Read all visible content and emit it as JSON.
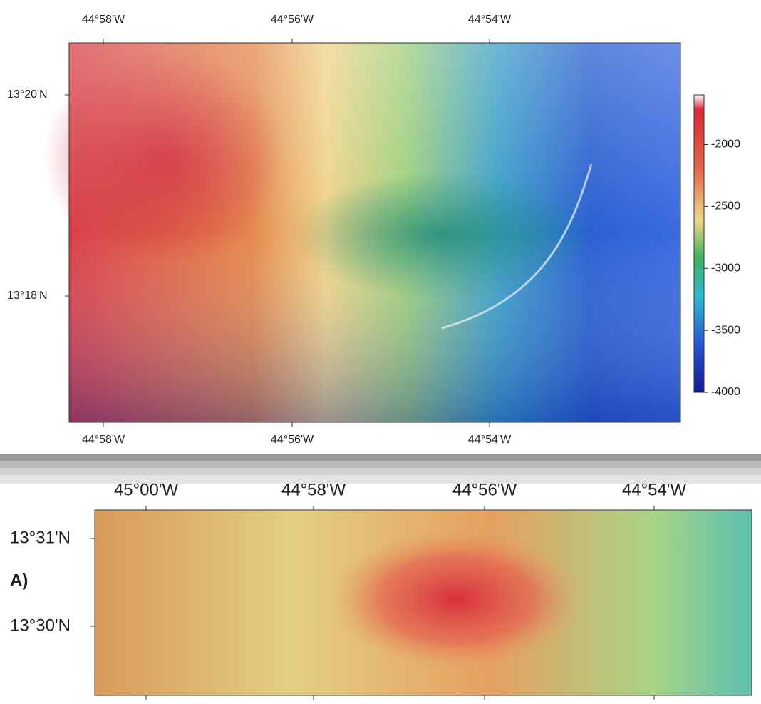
{
  "panel_1": {
    "x_labels": [
      "44°58'W",
      "44°56'W",
      "44°54'W"
    ],
    "y_labels": [
      "13°20'N",
      "13°18'N"
    ],
    "colorbar": {
      "lim": [
        -4000,
        -1600
      ],
      "ticks": [
        -2000,
        -2500,
        -3000,
        -3500,
        -4000
      ]
    }
  },
  "panel_2": {
    "label": "A)",
    "x_labels": [
      "45°00'W",
      "44°58'W",
      "44°56'W",
      "44°54'W"
    ],
    "y_labels": [
      "13°31'N",
      "13°30'N"
    ]
  }
}
